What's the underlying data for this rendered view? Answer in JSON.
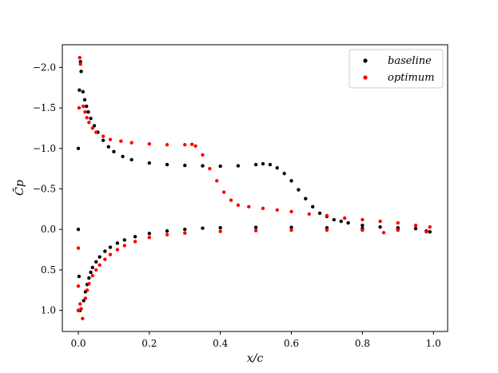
{
  "chart_data": {
    "type": "scatter",
    "title": "",
    "xlabel": "x/c",
    "ylabel": "C̄p",
    "xlim": [
      -0.045,
      1.04
    ],
    "ylim": [
      1.26,
      -2.28
    ],
    "y_inverted": true,
    "grid": false,
    "legend_position": "top-right",
    "xticks": [
      {
        "value": 0.0,
        "label": "0.0"
      },
      {
        "value": 0.2,
        "label": "0.2"
      },
      {
        "value": 0.4,
        "label": "0.4"
      },
      {
        "value": 0.6,
        "label": "0.6"
      },
      {
        "value": 0.8,
        "label": "0.8"
      },
      {
        "value": 1.0,
        "label": "1.0"
      }
    ],
    "yticks": [
      {
        "value": -2.0,
        "label": "−2.0"
      },
      {
        "value": -1.5,
        "label": "−1.5"
      },
      {
        "value": -1.0,
        "label": "−1.0"
      },
      {
        "value": -0.5,
        "label": "−0.5"
      },
      {
        "value": 0.0,
        "label": "0.0"
      },
      {
        "value": 0.5,
        "label": "0.5"
      },
      {
        "value": 1.0,
        "label": "1.0"
      }
    ],
    "series": [
      {
        "name": "baseline",
        "color": "#000000",
        "points": [
          [
            0.0,
            1.0
          ],
          [
            0.0,
            0.0
          ],
          [
            0.0,
            -1.0
          ],
          [
            0.002,
            0.58
          ],
          [
            0.003,
            -1.72
          ],
          [
            0.005,
            1.0
          ],
          [
            0.006,
            -2.07
          ],
          [
            0.008,
            -1.95
          ],
          [
            0.013,
            -1.7
          ],
          [
            0.018,
            -1.6
          ],
          [
            0.023,
            -1.52
          ],
          [
            0.028,
            -1.45
          ],
          [
            0.035,
            -1.37
          ],
          [
            0.045,
            -1.28
          ],
          [
            0.055,
            -1.2
          ],
          [
            0.07,
            -1.1
          ],
          [
            0.085,
            -1.02
          ],
          [
            0.1,
            -0.96
          ],
          [
            0.125,
            -0.9
          ],
          [
            0.15,
            -0.86
          ],
          [
            0.2,
            -0.82
          ],
          [
            0.25,
            -0.8
          ],
          [
            0.3,
            -0.79
          ],
          [
            0.35,
            -0.785
          ],
          [
            0.4,
            -0.78
          ],
          [
            0.45,
            -0.785
          ],
          [
            0.5,
            -0.8
          ],
          [
            0.52,
            -0.81
          ],
          [
            0.54,
            -0.8
          ],
          [
            0.56,
            -0.76
          ],
          [
            0.58,
            -0.69
          ],
          [
            0.6,
            -0.6
          ],
          [
            0.62,
            -0.49
          ],
          [
            0.64,
            -0.38
          ],
          [
            0.66,
            -0.28
          ],
          [
            0.68,
            -0.2
          ],
          [
            0.7,
            -0.16
          ],
          [
            0.72,
            -0.12
          ],
          [
            0.74,
            -0.1
          ],
          [
            0.76,
            -0.08
          ],
          [
            0.8,
            -0.05
          ],
          [
            0.85,
            -0.03
          ],
          [
            0.9,
            -0.02
          ],
          [
            0.95,
            -0.01
          ],
          [
            0.99,
            0.03
          ],
          [
            0.015,
            0.88
          ],
          [
            0.02,
            0.77
          ],
          [
            0.025,
            0.68
          ],
          [
            0.03,
            0.6
          ],
          [
            0.035,
            0.53
          ],
          [
            0.04,
            0.47
          ],
          [
            0.05,
            0.4
          ],
          [
            0.06,
            0.34
          ],
          [
            0.075,
            0.27
          ],
          [
            0.09,
            0.22
          ],
          [
            0.11,
            0.17
          ],
          [
            0.13,
            0.13
          ],
          [
            0.16,
            0.09
          ],
          [
            0.2,
            0.05
          ],
          [
            0.25,
            0.02
          ],
          [
            0.3,
            0.0
          ],
          [
            0.35,
            -0.015
          ],
          [
            0.4,
            -0.02
          ],
          [
            0.5,
            -0.025
          ],
          [
            0.6,
            -0.025
          ],
          [
            0.7,
            -0.02
          ],
          [
            0.8,
            -0.01
          ],
          [
            0.9,
            0.0
          ],
          [
            0.98,
            0.02
          ]
        ]
      },
      {
        "name": "optimum",
        "color": "#ff0000",
        "points": [
          [
            0.0,
            1.0
          ],
          [
            0.0,
            0.23
          ],
          [
            0.0,
            0.7
          ],
          [
            0.002,
            -1.5
          ],
          [
            0.004,
            -2.12
          ],
          [
            0.006,
            -2.04
          ],
          [
            0.005,
            0.92
          ],
          [
            0.008,
            0.98
          ],
          [
            0.014,
            -1.52
          ],
          [
            0.019,
            -1.45
          ],
          [
            0.024,
            -1.38
          ],
          [
            0.03,
            -1.32
          ],
          [
            0.04,
            -1.25
          ],
          [
            0.05,
            -1.2
          ],
          [
            0.07,
            -1.15
          ],
          [
            0.09,
            -1.11
          ],
          [
            0.12,
            -1.09
          ],
          [
            0.15,
            -1.07
          ],
          [
            0.2,
            -1.055
          ],
          [
            0.25,
            -1.045
          ],
          [
            0.3,
            -1.045
          ],
          [
            0.32,
            -1.05
          ],
          [
            0.33,
            -1.03
          ],
          [
            0.35,
            -0.92
          ],
          [
            0.37,
            -0.75
          ],
          [
            0.39,
            -0.6
          ],
          [
            0.41,
            -0.46
          ],
          [
            0.43,
            -0.36
          ],
          [
            0.45,
            -0.3
          ],
          [
            0.48,
            -0.28
          ],
          [
            0.52,
            -0.26
          ],
          [
            0.56,
            -0.24
          ],
          [
            0.6,
            -0.22
          ],
          [
            0.65,
            -0.19
          ],
          [
            0.7,
            -0.17
          ],
          [
            0.75,
            -0.14
          ],
          [
            0.8,
            -0.12
          ],
          [
            0.85,
            -0.1
          ],
          [
            0.9,
            -0.08
          ],
          [
            0.95,
            -0.05
          ],
          [
            0.99,
            -0.03
          ],
          [
            0.012,
            1.1
          ],
          [
            0.02,
            0.85
          ],
          [
            0.025,
            0.75
          ],
          [
            0.03,
            0.67
          ],
          [
            0.04,
            0.57
          ],
          [
            0.05,
            0.5
          ],
          [
            0.06,
            0.44
          ],
          [
            0.075,
            0.37
          ],
          [
            0.09,
            0.31
          ],
          [
            0.11,
            0.25
          ],
          [
            0.13,
            0.2
          ],
          [
            0.16,
            0.15
          ],
          [
            0.2,
            0.1
          ],
          [
            0.25,
            0.065
          ],
          [
            0.3,
            0.045
          ],
          [
            0.4,
            0.025
          ],
          [
            0.5,
            0.015
          ],
          [
            0.6,
            0.01
          ],
          [
            0.7,
            0.01
          ],
          [
            0.8,
            0.01
          ],
          [
            0.86,
            0.04
          ],
          [
            0.9,
            0.01
          ],
          [
            0.98,
            0.03
          ]
        ]
      }
    ]
  }
}
